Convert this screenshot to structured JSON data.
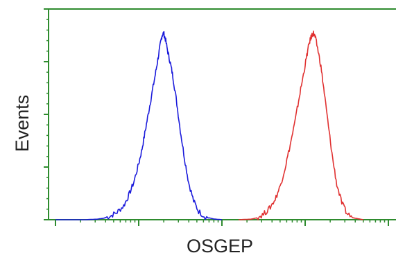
{
  "chart_data": {
    "type": "line",
    "xlabel": "OSGEP",
    "ylabel": "Events",
    "x_scale": "log",
    "x_decades": 4,
    "grid": false,
    "axis_color": "#2e8b2e",
    "series": [
      {
        "color": "#1a1adb",
        "points": [
          [
            0.0,
            0.0
          ],
          [
            0.35,
            0.0
          ],
          [
            0.5,
            0.003
          ],
          [
            0.58,
            0.008
          ],
          [
            0.66,
            0.02
          ],
          [
            0.74,
            0.04
          ],
          [
            0.82,
            0.075
          ],
          [
            0.88,
            0.13
          ],
          [
            0.94,
            0.2
          ],
          [
            1.0,
            0.3
          ],
          [
            1.04,
            0.38
          ],
          [
            1.08,
            0.48
          ],
          [
            1.12,
            0.58
          ],
          [
            1.16,
            0.68
          ],
          [
            1.2,
            0.78
          ],
          [
            1.23,
            0.86
          ],
          [
            1.26,
            0.94
          ],
          [
            1.28,
            0.99
          ],
          [
            1.3,
            1.0
          ],
          [
            1.32,
            0.97
          ],
          [
            1.35,
            0.9
          ],
          [
            1.38,
            0.84
          ],
          [
            1.41,
            0.77
          ],
          [
            1.45,
            0.65
          ],
          [
            1.5,
            0.48
          ],
          [
            1.55,
            0.33
          ],
          [
            1.6,
            0.2
          ],
          [
            1.66,
            0.1
          ],
          [
            1.72,
            0.045
          ],
          [
            1.8,
            0.015
          ],
          [
            1.9,
            0.004
          ],
          [
            2.0,
            0.0
          ]
        ]
      },
      {
        "color": "#e03030",
        "points": [
          [
            2.2,
            0.0
          ],
          [
            2.35,
            0.003
          ],
          [
            2.42,
            0.01
          ],
          [
            2.5,
            0.03
          ],
          [
            2.57,
            0.06
          ],
          [
            2.64,
            0.11
          ],
          [
            2.7,
            0.18
          ],
          [
            2.76,
            0.28
          ],
          [
            2.82,
            0.4
          ],
          [
            2.88,
            0.53
          ],
          [
            2.93,
            0.66
          ],
          [
            2.98,
            0.78
          ],
          [
            3.02,
            0.88
          ],
          [
            3.05,
            0.95
          ],
          [
            3.08,
            0.99
          ],
          [
            3.1,
            1.0
          ],
          [
            3.12,
            0.98
          ],
          [
            3.15,
            0.92
          ],
          [
            3.19,
            0.82
          ],
          [
            3.23,
            0.68
          ],
          [
            3.28,
            0.5
          ],
          [
            3.33,
            0.33
          ],
          [
            3.38,
            0.19
          ],
          [
            3.44,
            0.09
          ],
          [
            3.5,
            0.035
          ],
          [
            3.58,
            0.01
          ],
          [
            3.7,
            0.0
          ]
        ]
      }
    ]
  }
}
